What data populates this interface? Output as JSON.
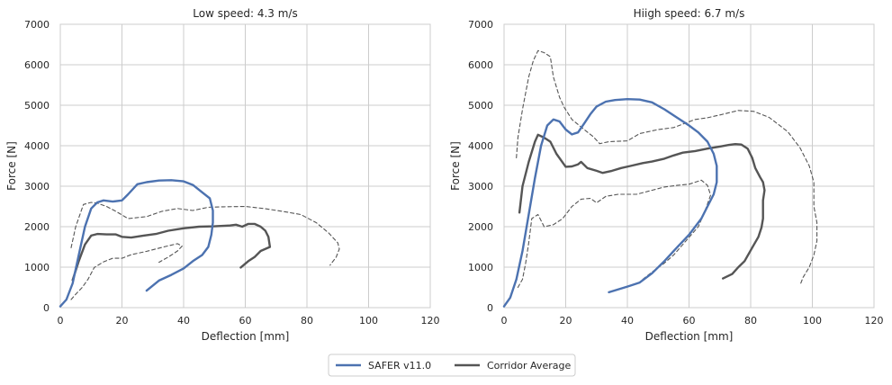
{
  "chart_data": [
    {
      "type": "line",
      "title": "Low speed: 4.3 m/s",
      "xlabel": "Deflection [mm]",
      "ylabel": "Force [N]",
      "xlim": [
        0,
        120
      ],
      "ylim": [
        0,
        7000
      ],
      "xticks": [
        0,
        20,
        40,
        60,
        80,
        100,
        120
      ],
      "yticks": [
        0,
        1000,
        2000,
        3000,
        4000,
        5000,
        6000,
        7000
      ],
      "grid": true,
      "series": [
        {
          "name": "SAFER v11.0",
          "style": "solid",
          "color": "#4c72b0",
          "x": [
            0,
            2,
            4,
            6,
            8,
            10,
            12,
            14,
            17,
            20,
            22,
            25,
            28,
            32,
            36,
            40,
            43,
            46,
            48.5,
            49.5,
            49.5,
            49,
            48,
            46,
            43,
            40,
            36,
            32,
            28
          ],
          "y": [
            30,
            200,
            600,
            1300,
            2000,
            2450,
            2600,
            2650,
            2620,
            2650,
            2800,
            3050,
            3100,
            3140,
            3150,
            3120,
            3030,
            2850,
            2700,
            2400,
            2100,
            1800,
            1500,
            1300,
            1150,
            970,
            810,
            670,
            420
          ]
        },
        {
          "name": "Corridor Average",
          "style": "solid",
          "color": "#555555",
          "x": [
            4,
            6,
            8,
            10,
            12,
            15,
            18,
            20,
            23,
            27,
            31,
            35,
            40,
            45,
            50,
            55,
            57,
            59,
            61,
            63,
            65,
            66.5,
            67.5,
            68,
            65,
            63,
            61,
            58.5
          ],
          "y": [
            680,
            1150,
            1560,
            1780,
            1820,
            1810,
            1810,
            1750,
            1730,
            1780,
            1820,
            1900,
            1960,
            2000,
            2010,
            2030,
            2050,
            2000,
            2070,
            2070,
            2000,
            1900,
            1750,
            1500,
            1400,
            1250,
            1150,
            990
          ]
        },
        {
          "name": "",
          "style": "dashed",
          "color": "#555555",
          "x": [
            3.5,
            5,
            7.5,
            10,
            12,
            15,
            18,
            22,
            28,
            33,
            38,
            43,
            48,
            53,
            60,
            66,
            72,
            78,
            83,
            87,
            90,
            90.5,
            89.5,
            87.5
          ],
          "y": [
            1480,
            2000,
            2550,
            2600,
            2580,
            2500,
            2380,
            2200,
            2250,
            2380,
            2450,
            2400,
            2480,
            2490,
            2500,
            2450,
            2380,
            2300,
            2100,
            1850,
            1600,
            1450,
            1250,
            1050
          ]
        },
        {
          "name": "",
          "style": "dashed",
          "color": "#555555",
          "x": [
            3.5,
            5,
            7,
            9,
            11,
            14,
            17,
            20,
            23,
            28,
            34,
            38,
            39.5,
            38,
            35,
            32
          ],
          "y": [
            200,
            330,
            490,
            700,
            990,
            1130,
            1220,
            1220,
            1310,
            1390,
            1510,
            1580,
            1520,
            1400,
            1250,
            1120
          ]
        }
      ]
    },
    {
      "type": "line",
      "title": "Hiigh speed: 6.7 m/s",
      "xlabel": "Deflection [mm]",
      "ylabel": "Force [N]",
      "xlim": [
        0,
        120
      ],
      "ylim": [
        0,
        7000
      ],
      "xticks": [
        0,
        20,
        40,
        60,
        80,
        100,
        120
      ],
      "yticks": [
        0,
        1000,
        2000,
        3000,
        4000,
        5000,
        6000,
        7000
      ],
      "grid": true,
      "series": [
        {
          "name": "SAFER v11.0",
          "style": "solid",
          "color": "#4c72b0",
          "x": [
            0,
            2,
            4,
            6,
            8,
            10,
            12,
            14,
            16,
            18,
            20,
            22,
            24,
            26,
            28,
            30,
            33,
            36,
            40,
            44,
            48,
            52,
            56,
            60,
            63,
            66,
            68,
            69,
            69,
            68,
            66,
            64,
            60,
            56,
            52,
            48,
            44,
            40,
            34
          ],
          "y": [
            30,
            250,
            700,
            1400,
            2300,
            3200,
            4000,
            4500,
            4650,
            4600,
            4400,
            4280,
            4330,
            4550,
            4780,
            4970,
            5090,
            5130,
            5150,
            5140,
            5070,
            4900,
            4700,
            4500,
            4330,
            4100,
            3800,
            3500,
            3100,
            2800,
            2500,
            2200,
            1800,
            1480,
            1150,
            850,
            620,
            520,
            380
          ]
        },
        {
          "name": "Corridor Average",
          "style": "solid",
          "color": "#555555",
          "x": [
            5,
            6,
            8,
            10,
            11,
            13,
            15,
            17,
            20,
            22,
            24,
            25,
            27,
            30,
            32,
            35,
            38,
            41,
            45,
            48,
            52,
            55,
            58,
            62,
            66,
            70,
            73,
            75,
            77,
            79,
            80.5,
            81.5,
            83,
            84,
            84.5,
            84,
            84,
            83.5,
            82.5,
            81,
            79.5,
            78,
            76,
            74,
            71
          ],
          "y": [
            2350,
            3000,
            3600,
            4100,
            4270,
            4200,
            4100,
            3800,
            3480,
            3490,
            3540,
            3600,
            3450,
            3380,
            3330,
            3380,
            3450,
            3500,
            3570,
            3610,
            3680,
            3760,
            3830,
            3870,
            3930,
            3980,
            4020,
            4040,
            4030,
            3930,
            3700,
            3450,
            3230,
            3100,
            2900,
            2650,
            2200,
            1980,
            1750,
            1550,
            1350,
            1150,
            1000,
            830,
            720
          ]
        },
        {
          "name": "",
          "style": "dashed",
          "color": "#555555",
          "x": [
            4,
            4.5,
            6,
            8,
            9.5,
            11,
            13,
            15,
            16,
            18,
            19.5,
            22,
            26,
            29,
            31,
            34,
            40,
            44,
            50,
            55,
            62,
            66,
            70,
            76,
            81,
            86,
            92,
            96,
            99,
            100.5,
            100.5,
            101.5,
            101.5,
            100.5,
            99,
            97,
            96
          ],
          "y": [
            3700,
            4200,
            4900,
            5700,
            6100,
            6350,
            6300,
            6200,
            5700,
            5200,
            4950,
            4650,
            4400,
            4220,
            4050,
            4100,
            4120,
            4300,
            4400,
            4450,
            4650,
            4690,
            4760,
            4870,
            4850,
            4700,
            4350,
            3950,
            3500,
            3100,
            2500,
            2100,
            1650,
            1300,
            1000,
            750,
            550
          ]
        },
        {
          "name": "",
          "style": "dashed",
          "color": "#555555",
          "x": [
            4.5,
            6,
            7,
            8,
            9,
            11,
            13,
            16,
            19,
            22,
            25,
            28,
            30,
            33,
            37,
            43,
            48,
            52,
            56,
            60,
            64,
            66,
            67,
            65,
            63,
            59,
            55,
            52,
            48,
            45
          ],
          "y": [
            500,
            700,
            1100,
            1600,
            2200,
            2300,
            2000,
            2050,
            2200,
            2500,
            2680,
            2700,
            2590,
            2750,
            2800,
            2800,
            2900,
            2980,
            3020,
            3050,
            3150,
            3020,
            2780,
            2350,
            2000,
            1650,
            1300,
            1100,
            880,
            700
          ]
        }
      ]
    }
  ],
  "legend": {
    "position": "bottom-center",
    "items": [
      {
        "label": "SAFER v11.0",
        "color": "#4c72b0"
      },
      {
        "label": "Corridor Average",
        "color": "#555555"
      }
    ]
  },
  "colors": {
    "grid": "#cccccc",
    "frame": "#cccccc",
    "background": "#ffffff"
  }
}
